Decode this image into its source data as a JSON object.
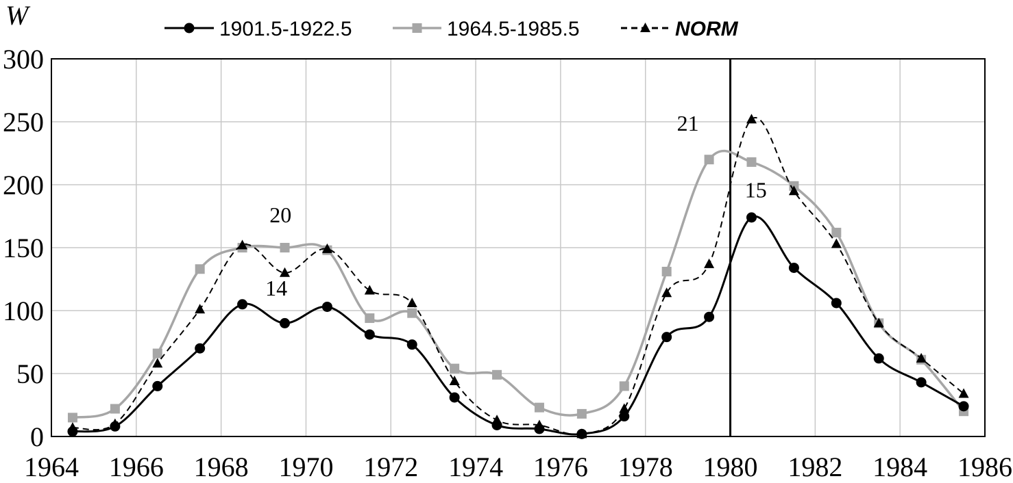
{
  "chart_data": {
    "type": "line",
    "ylabel": "W",
    "xlabel": "",
    "title": "",
    "xlim": [
      1964,
      1986
    ],
    "ylim": [
      0,
      300
    ],
    "xticks": [
      "1964",
      "1966",
      "1968",
      "1970",
      "1972",
      "1974",
      "1976",
      "1978",
      "1980",
      "1982",
      "1984",
      "1986"
    ],
    "yticks": [
      "0",
      "50",
      "100",
      "150",
      "200",
      "250",
      "300"
    ],
    "grid": true,
    "legend_position": "top",
    "vertical_line_x": 1980,
    "x": [
      1964.5,
      1965.5,
      1966.5,
      1967.5,
      1968.5,
      1969.5,
      1970.5,
      1971.5,
      1972.5,
      1973.5,
      1974.5,
      1975.5,
      1976.5,
      1977.5,
      1978.5,
      1979.5,
      1980.5,
      1981.5,
      1982.5,
      1983.5,
      1984.5,
      1985.5
    ],
    "series": [
      {
        "name": "1901.5-1922.5",
        "color": "#000000",
        "marker": "circle",
        "dash": "solid",
        "values": [
          4,
          8,
          40,
          70,
          105,
          90,
          103,
          81,
          73,
          31,
          9,
          6,
          2,
          16,
          79,
          95,
          174,
          134,
          106,
          62,
          43,
          24
        ]
      },
      {
        "name": "1964.5-1985.5",
        "color": "#a6a6a6",
        "marker": "square",
        "dash": "solid",
        "values": [
          15,
          22,
          66,
          133,
          150,
          150,
          148,
          94,
          98,
          54,
          49,
          23,
          18,
          40,
          131,
          220,
          218,
          199,
          162,
          90,
          61,
          20
        ]
      },
      {
        "name": "NORM",
        "color": "#000000",
        "marker": "triangle",
        "dash": "dashed",
        "values": [
          7,
          10,
          58,
          101,
          152,
          130,
          149,
          116,
          106,
          44,
          13,
          9,
          2,
          22,
          114,
          137,
          252,
          195,
          153,
          90,
          62,
          34
        ]
      }
    ],
    "annotations": [
      {
        "text": "20",
        "x": 1969.4,
        "y": 170
      },
      {
        "text": "14",
        "x": 1969.3,
        "y": 112
      },
      {
        "text": "21",
        "x": 1979.0,
        "y": 243
      },
      {
        "text": "15",
        "x": 1980.6,
        "y": 190
      }
    ]
  }
}
